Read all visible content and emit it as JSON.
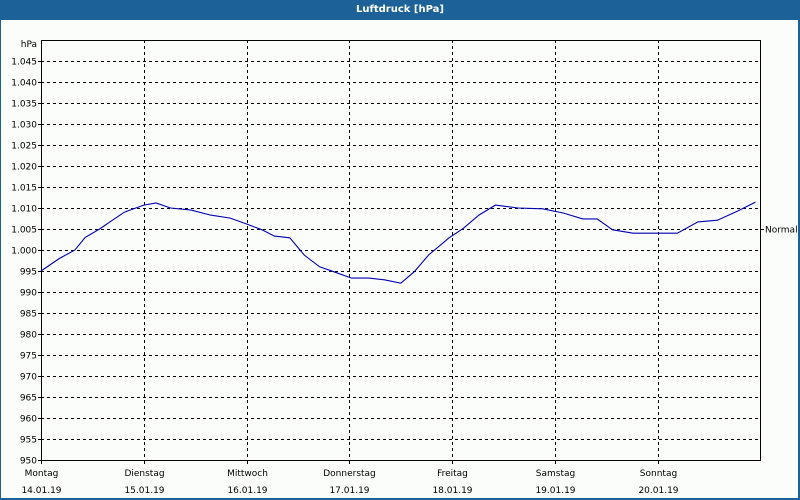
{
  "window": {
    "title": "Luftdruck [hPa]"
  },
  "chart_data": {
    "type": "line",
    "title": "Luftdruck [hPa]",
    "ylabel": "hPa",
    "xlabel": "",
    "ylim": [
      950,
      1050
    ],
    "yticks": [
      "950",
      "955",
      "960",
      "965",
      "970",
      "975",
      "980",
      "985",
      "990",
      "995",
      "1.000",
      "1.005",
      "1.010",
      "1.015",
      "1.020",
      "1.025",
      "1.030",
      "1.035",
      "1.040",
      "1.045"
    ],
    "grid": true,
    "x_categories": [
      {
        "day": "Montag",
        "date": "14.01.19"
      },
      {
        "day": "Dienstag",
        "date": "15.01.19"
      },
      {
        "day": "Mittwoch",
        "date": "16.01.19"
      },
      {
        "day": "Donnerstag",
        "date": "17.01.19"
      },
      {
        "day": "Freitag",
        "date": "18.01.19"
      },
      {
        "day": "Samstag",
        "date": "19.01.19"
      },
      {
        "day": "Sonntag",
        "date": "20.01.19"
      }
    ],
    "reference_line": {
      "label": "Normal",
      "value": 1005
    },
    "series": [
      {
        "name": "Luftdruck",
        "color": "#0000b0",
        "x_days": [
          0.0,
          0.18,
          0.33,
          0.43,
          0.57,
          0.69,
          0.81,
          1.0,
          1.12,
          1.26,
          1.46,
          1.65,
          1.84,
          2.0,
          2.15,
          2.27,
          2.42,
          2.56,
          2.71,
          2.85,
          3.02,
          3.19,
          3.34,
          3.5,
          3.63,
          3.77,
          3.97,
          4.11,
          4.26,
          4.42,
          4.64,
          4.88,
          5.08,
          5.27,
          5.41,
          5.56,
          5.76,
          5.97,
          6.19,
          6.39,
          6.58,
          6.78,
          6.95
        ],
        "values": [
          995.0,
          998.0,
          1000.0,
          1003.0,
          1005.0,
          1007.0,
          1009.0,
          1010.7,
          1011.2,
          1010.0,
          1009.5,
          1008.3,
          1007.6,
          1006.2,
          1004.8,
          1003.3,
          1002.9,
          998.8,
          996.0,
          994.8,
          993.3,
          993.3,
          992.9,
          992.1,
          994.8,
          998.8,
          1002.9,
          1005.2,
          1008.3,
          1010.7,
          1010.0,
          1009.8,
          1008.8,
          1007.4,
          1007.4,
          1004.8,
          1004.0,
          1004.0,
          1004.0,
          1006.7,
          1007.1,
          1009.3,
          1011.4
        ]
      }
    ],
    "legend": "none"
  }
}
